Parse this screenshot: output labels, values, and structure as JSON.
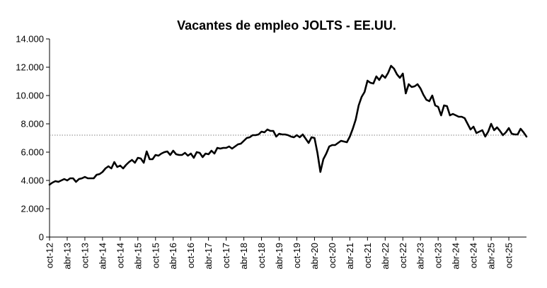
{
  "chart_data": {
    "type": "line",
    "title": "Vacantes de empleo JOLTS - EE.UU.",
    "xlabel": "",
    "ylabel": "",
    "ylim": [
      0,
      14000
    ],
    "y_ticks": [
      0,
      2000,
      4000,
      6000,
      8000,
      10000,
      12000,
      14000
    ],
    "y_tick_labels": [
      "0",
      "2.000",
      "4.000",
      "6.000",
      "8.000",
      "10.000",
      "12.000",
      "14.000"
    ],
    "x_tick_labels": [
      "oct-12",
      "abr-13",
      "oct-13",
      "abr-14",
      "oct-14",
      "abr-15",
      "oct-15",
      "abr-16",
      "oct-16",
      "abr-17",
      "oct-17",
      "abr-18",
      "oct-18",
      "abr-19",
      "oct-19",
      "abr-20",
      "oct-20",
      "abr-21",
      "oct-21",
      "abr-22",
      "oct-22",
      "abr-23",
      "oct-23",
      "abr-24",
      "oct-24",
      "abr-25",
      "oct-25"
    ],
    "grid": false,
    "reference_line": {
      "value": 7200,
      "style": "dotted",
      "color": "#808080"
    },
    "series": [
      {
        "color": "#000000",
        "values": [
          3700,
          3850,
          3950,
          3900,
          4000,
          4100,
          4000,
          4150,
          4150,
          3900,
          4100,
          4150,
          4250,
          4150,
          4150,
          4150,
          4400,
          4450,
          4600,
          4850,
          5000,
          4850,
          5300,
          4950,
          5050,
          4850,
          5100,
          5300,
          5450,
          5250,
          5600,
          5550,
          5250,
          6050,
          5500,
          5500,
          5800,
          5750,
          5900,
          6000,
          6050,
          5800,
          6100,
          5850,
          5800,
          5800,
          5950,
          5750,
          5900,
          5600,
          6000,
          5950,
          5650,
          5900,
          5850,
          6100,
          5900,
          6300,
          6250,
          6300,
          6300,
          6400,
          6250,
          6400,
          6550,
          6600,
          6800,
          7000,
          7050,
          7200,
          7200,
          7250,
          7450,
          7400,
          7600,
          7500,
          7500,
          7100,
          7300,
          7250,
          7250,
          7200,
          7100,
          7050,
          7200,
          7050,
          7250,
          6950,
          6650,
          7050,
          7000,
          5950,
          4600,
          5500,
          5900,
          6400,
          6500,
          6500,
          6650,
          6800,
          6750,
          6700,
          7100,
          7650,
          8300,
          9300,
          9900,
          10250,
          11050,
          10900,
          10850,
          11350,
          11100,
          11450,
          11250,
          11600,
          12100,
          11900,
          11500,
          11250,
          11550,
          10150,
          10800,
          10600,
          10650,
          10800,
          10500,
          10050,
          9700,
          9600,
          10000,
          9300,
          9200,
          8600,
          9300,
          9250,
          8600,
          8700,
          8600,
          8500,
          8500,
          8400,
          8000,
          7600,
          7800,
          7350,
          7450,
          7550,
          7100,
          7450,
          8000,
          7550,
          7750,
          7500,
          7200,
          7400,
          7700,
          7300,
          7250,
          7250,
          7650,
          7400,
          7100
        ]
      }
    ]
  }
}
